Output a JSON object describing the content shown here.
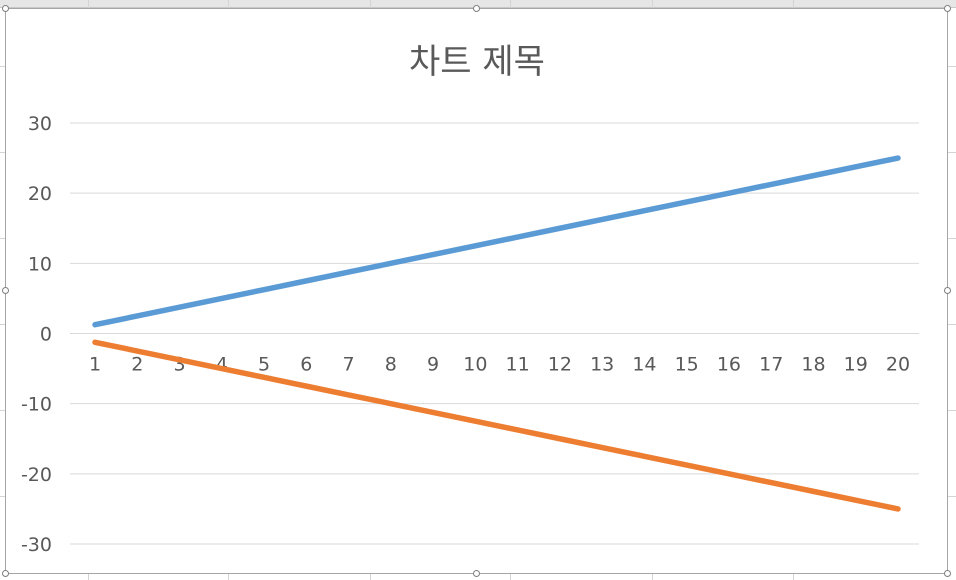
{
  "chart_data": {
    "type": "line",
    "title": "차트 제목",
    "xlabel": "",
    "ylabel": "",
    "categories": [
      1,
      2,
      3,
      4,
      5,
      6,
      7,
      8,
      9,
      10,
      11,
      12,
      13,
      14,
      15,
      16,
      17,
      18,
      19,
      20
    ],
    "x_tick_labels": [
      "1",
      "2",
      "3",
      "4",
      "5",
      "6",
      "7",
      "8",
      "9",
      "10",
      "11",
      "12",
      "13",
      "14",
      "15",
      "16",
      "17",
      "18",
      "19",
      "20"
    ],
    "y_tick_labels": [
      "30",
      "20",
      "10",
      "0",
      "-10",
      "-20",
      "-30"
    ],
    "y_ticks": [
      30,
      20,
      10,
      0,
      -10,
      -20,
      -30
    ],
    "ylim": [
      -30,
      30
    ],
    "grid": "horizontal",
    "legend": "none",
    "series": [
      {
        "color": "#5b9bd5",
        "values": [
          1.25,
          2.5,
          3.75,
          5,
          6.25,
          7.5,
          8.75,
          10,
          11.25,
          12.5,
          13.75,
          15,
          16.25,
          17.5,
          18.75,
          20,
          21.25,
          22.5,
          23.75,
          25
        ]
      },
      {
        "color": "#ed7d31",
        "values": [
          -1.25,
          -2.5,
          -3.75,
          -5,
          -6.25,
          -7.5,
          -8.75,
          -10,
          -11.25,
          -12.5,
          -13.75,
          -15,
          -16.25,
          -17.5,
          -18.75,
          -20,
          -21.25,
          -22.5,
          -23.75,
          -25
        ]
      }
    ]
  },
  "colors": {
    "title": "#595959",
    "tick_label": "#595959",
    "gridline": "#d9d9d9"
  }
}
